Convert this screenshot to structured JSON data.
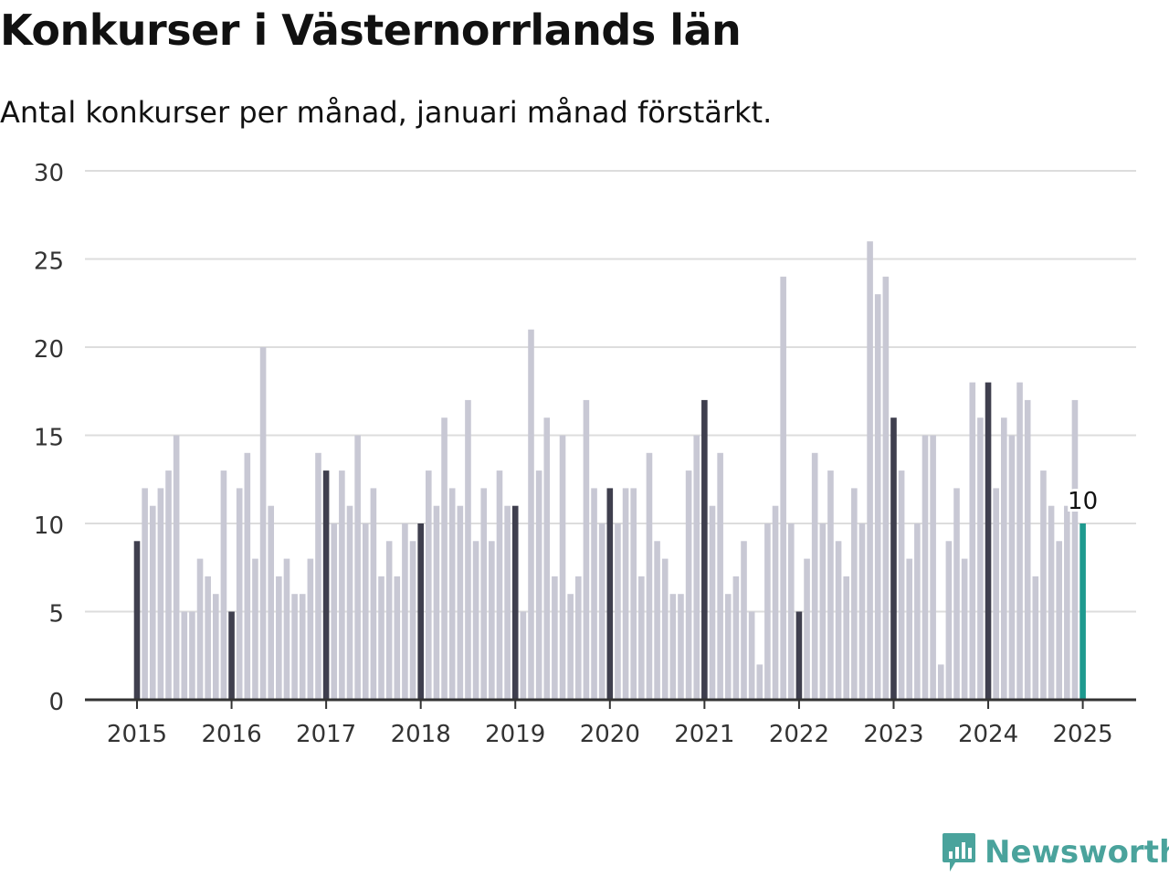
{
  "title": "Konkurser i Västernorrlands län",
  "subtitle": "Antal konkurser per månad, januari månad förstärkt.",
  "logo": {
    "text": "Newsworthy",
    "icon": "newsworthy-chart-bubble-icon"
  },
  "chart_data": {
    "type": "bar",
    "title": "Konkurser i Västernorrlands län",
    "subtitle": "Antal konkurser per månad, januari månad förstärkt.",
    "start": "2015-01",
    "end": "2025-01",
    "ylim": [
      0,
      30
    ],
    "yticks": [
      0,
      5,
      10,
      15,
      20,
      25,
      30
    ],
    "xticks": [
      "2015",
      "2016",
      "2017",
      "2018",
      "2019",
      "2020",
      "2021",
      "2022",
      "2023",
      "2024",
      "2025"
    ],
    "grid": true,
    "annotation": {
      "label": "10",
      "period": "2025-01"
    },
    "colors": {
      "january": "#3f3f4e",
      "other": "#c8c8d4",
      "latest": "#1e9a8f",
      "grid": "#dddddd",
      "axis": "#333333"
    },
    "values": [
      9,
      12,
      11,
      12,
      13,
      15,
      5,
      5,
      8,
      7,
      6,
      13,
      5,
      12,
      14,
      8,
      20,
      11,
      7,
      8,
      6,
      6,
      8,
      14,
      13,
      10,
      13,
      11,
      15,
      10,
      12,
      7,
      9,
      7,
      10,
      9,
      10,
      13,
      11,
      16,
      12,
      11,
      17,
      9,
      12,
      9,
      13,
      11,
      11,
      5,
      21,
      13,
      16,
      7,
      15,
      6,
      7,
      17,
      12,
      10,
      12,
      10,
      12,
      12,
      7,
      14,
      9,
      8,
      6,
      6,
      13,
      15,
      17,
      11,
      14,
      6,
      7,
      9,
      5,
      2,
      10,
      11,
      24,
      10,
      5,
      8,
      14,
      10,
      13,
      9,
      7,
      12,
      10,
      26,
      23,
      24,
      16,
      13,
      8,
      10,
      15,
      15,
      2,
      9,
      12,
      8,
      18,
      16,
      18,
      12,
      16,
      15,
      18,
      17,
      7,
      13,
      11,
      9,
      11,
      17,
      10
    ]
  }
}
